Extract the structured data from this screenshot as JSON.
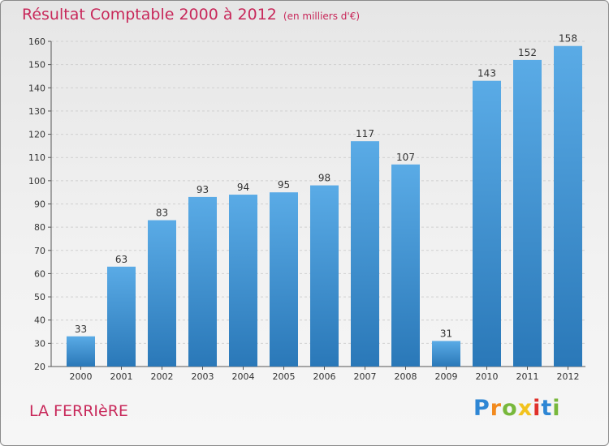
{
  "header": {
    "title": "Résultat Comptable 2000 à 2012",
    "subtitle": "(en milliers d'€)"
  },
  "footer": {
    "commune": "LA FERRIèRE",
    "logo_letters": [
      "P",
      "r",
      "o",
      "x",
      "i",
      "t",
      "i"
    ]
  },
  "colors": {
    "title": "#c8285a",
    "bar_top": "#5aabe6",
    "bar_bottom": "#2a78b8",
    "logo": [
      "#2e86d4",
      "#f28a1e",
      "#78b83c",
      "#f2c31e",
      "#e0302a",
      "#2e86d4",
      "#78b83c"
    ]
  },
  "chart_data": {
    "type": "bar",
    "title": "Résultat Comptable 2000 à 2012",
    "subtitle": "(en milliers d'€)",
    "categories": [
      "2000",
      "2001",
      "2002",
      "2003",
      "2004",
      "2005",
      "2006",
      "2007",
      "2008",
      "2009",
      "2010",
      "2011",
      "2012"
    ],
    "values": [
      33,
      63,
      83,
      93,
      94,
      95,
      98,
      117,
      107,
      31,
      143,
      152,
      158
    ],
    "xlabel": "",
    "ylabel": "",
    "ylim": [
      20,
      160
    ],
    "yticks": [
      20,
      30,
      40,
      50,
      60,
      70,
      80,
      90,
      100,
      110,
      120,
      130,
      140,
      150,
      160
    ],
    "grid": true,
    "legend": "none"
  }
}
